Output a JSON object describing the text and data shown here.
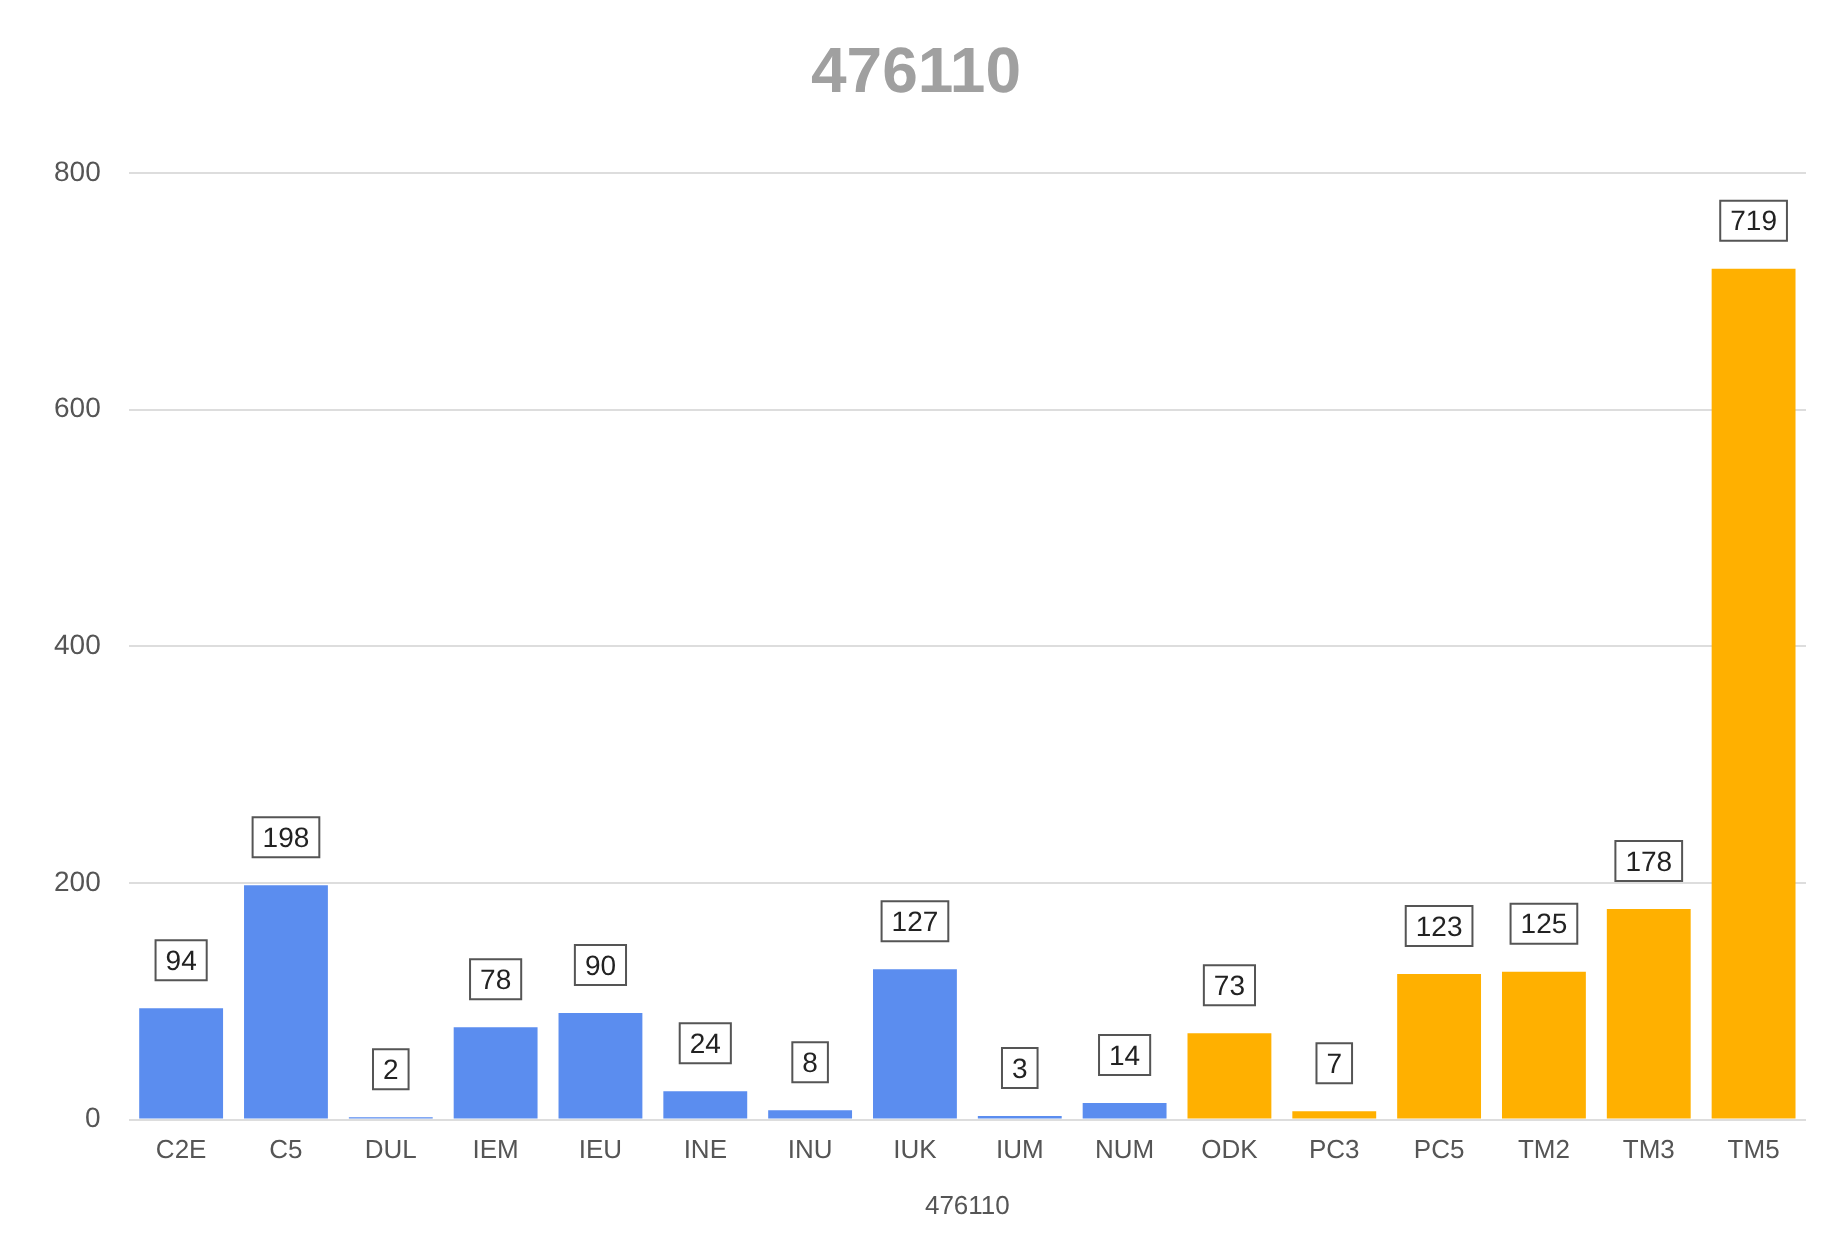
{
  "chart_data": {
    "type": "bar",
    "title": "476110",
    "xlabel": "476110",
    "categories": [
      "C2E",
      "C5",
      "DUL",
      "IEM",
      "IEU",
      "INE",
      "INU",
      "IUK",
      "IUM",
      "NUM",
      "ODK",
      "PC3",
      "PC5",
      "TM2",
      "TM3",
      "TM5"
    ],
    "values": [
      94,
      198,
      2,
      78,
      90,
      24,
      8,
      127,
      3,
      14,
      73,
      7,
      123,
      125,
      178,
      719
    ],
    "colors": [
      "#5b8def",
      "#5b8def",
      "#5b8def",
      "#5b8def",
      "#5b8def",
      "#5b8def",
      "#5b8def",
      "#5b8def",
      "#5b8def",
      "#5b8def",
      "#ffb000",
      "#ffb000",
      "#ffb000",
      "#ffb000",
      "#ffb000",
      "#ffb000"
    ],
    "ylim": [
      0,
      800
    ],
    "yticks": [
      0,
      200,
      400,
      600,
      800
    ],
    "grid": "y",
    "data_labels": true
  }
}
